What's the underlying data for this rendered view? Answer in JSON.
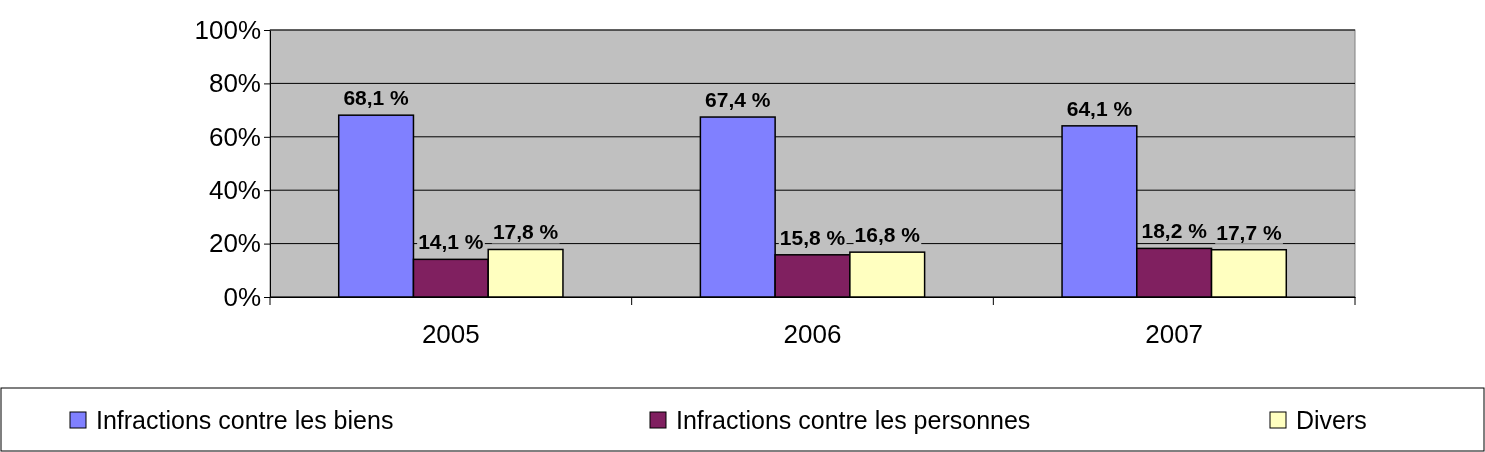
{
  "chart_data": {
    "type": "bar",
    "categories": [
      "2005",
      "2006",
      "2007"
    ],
    "series": [
      {
        "name": "Infractions contre les biens",
        "color": "#8080ff",
        "values": [
          68.1,
          67.4,
          64.1
        ],
        "value_labels": [
          "68,1 %",
          "67,4 %",
          "64,1 %"
        ]
      },
      {
        "name": "Infractions contre les personnes",
        "color": "#802060",
        "values": [
          14.1,
          15.8,
          18.2
        ],
        "value_labels": [
          "14,1 %",
          "15,8 %",
          "18,2 %"
        ]
      },
      {
        "name": "Divers",
        "color": "#ffffc0",
        "values": [
          17.8,
          16.8,
          17.7
        ],
        "value_labels": [
          "17,8 %",
          "16,8 %",
          "17,7 %"
        ]
      }
    ],
    "ylim": [
      0,
      100
    ],
    "yticks": [
      {
        "value": 0,
        "label": "0%"
      },
      {
        "value": 20,
        "label": "20%"
      },
      {
        "value": 40,
        "label": "40%"
      },
      {
        "value": 60,
        "label": "60%"
      },
      {
        "value": 80,
        "label": "80%"
      },
      {
        "value": 100,
        "label": "100%"
      }
    ],
    "grid": "y",
    "legend": "bottom"
  }
}
